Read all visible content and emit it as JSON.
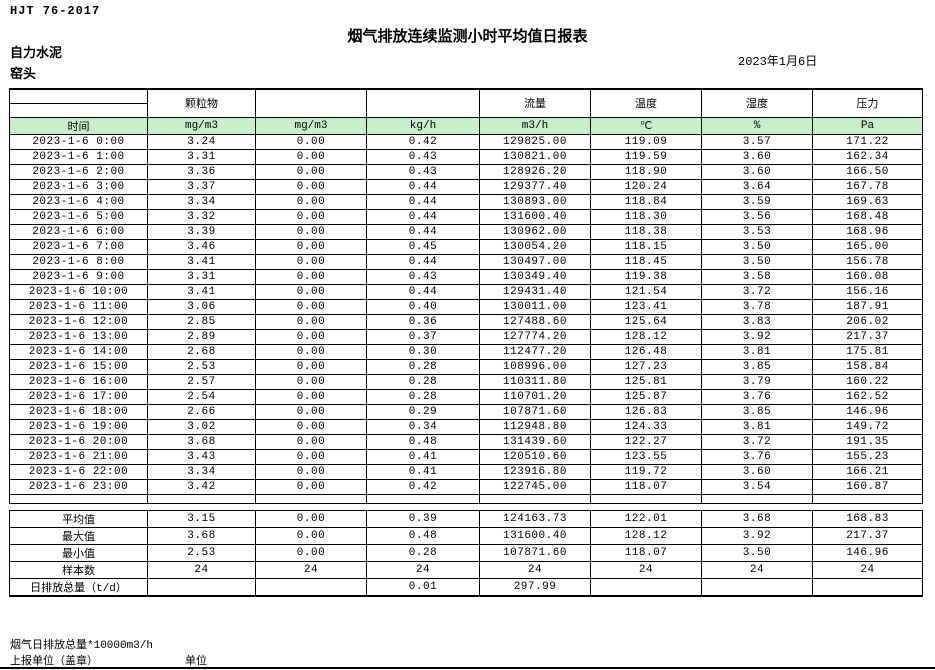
{
  "header": {
    "standard_code": "HJT 76-2017",
    "title": "烟气排放连续监测小时平均值日报表",
    "company": "自力水泥",
    "station": "窑头",
    "date": "2023年1月6日"
  },
  "colors": {
    "header_green": "#c8f0c8"
  },
  "table": {
    "group_headers": [
      "",
      "颗粒物",
      "",
      "",
      "流量",
      "温度",
      "湿度",
      "压力"
    ],
    "unit_row": [
      "时间",
      "mg/m3",
      "mg/m3",
      "kg/h",
      "m3/h",
      "℃",
      "%",
      "Pa"
    ],
    "rows": [
      [
        "2023-1-6 0:00",
        "3.24",
        "0.00",
        "0.42",
        "129825.00",
        "119.09",
        "3.57",
        "171.22"
      ],
      [
        "2023-1-6 1:00",
        "3.31",
        "0.00",
        "0.43",
        "130821.00",
        "119.59",
        "3.60",
        "162.34"
      ],
      [
        "2023-1-6 2:00",
        "3.36",
        "0.00",
        "0.43",
        "128926.20",
        "118.90",
        "3.60",
        "166.50"
      ],
      [
        "2023-1-6 3:00",
        "3.37",
        "0.00",
        "0.44",
        "129377.40",
        "120.24",
        "3.64",
        "167.78"
      ],
      [
        "2023-1-6 4:00",
        "3.34",
        "0.00",
        "0.44",
        "130893.00",
        "118.84",
        "3.59",
        "169.63"
      ],
      [
        "2023-1-6 5:00",
        "3.32",
        "0.00",
        "0.44",
        "131600.40",
        "118.30",
        "3.56",
        "168.48"
      ],
      [
        "2023-1-6 6:00",
        "3.39",
        "0.00",
        "0.44",
        "130962.00",
        "118.38",
        "3.53",
        "168.96"
      ],
      [
        "2023-1-6 7:00",
        "3.46",
        "0.00",
        "0.45",
        "130054.20",
        "118.15",
        "3.50",
        "165.00"
      ],
      [
        "2023-1-6 8:00",
        "3.41",
        "0.00",
        "0.44",
        "130497.00",
        "118.45",
        "3.50",
        "156.78"
      ],
      [
        "2023-1-6 9:00",
        "3.31",
        "0.00",
        "0.43",
        "130349.40",
        "119.38",
        "3.58",
        "160.08"
      ],
      [
        "2023-1-6 10:00",
        "3.41",
        "0.00",
        "0.44",
        "129431.40",
        "121.54",
        "3.72",
        "156.16"
      ],
      [
        "2023-1-6 11:00",
        "3.06",
        "0.00",
        "0.40",
        "130011.00",
        "123.41",
        "3.78",
        "187.91"
      ],
      [
        "2023-1-6 12:00",
        "2.85",
        "0.00",
        "0.36",
        "127488.60",
        "125.64",
        "3.83",
        "206.02"
      ],
      [
        "2023-1-6 13:00",
        "2.89",
        "0.00",
        "0.37",
        "127774.20",
        "128.12",
        "3.92",
        "217.37"
      ],
      [
        "2023-1-6 14:00",
        "2.68",
        "0.00",
        "0.30",
        "112477.20",
        "126.48",
        "3.81",
        "175.81"
      ],
      [
        "2023-1-6 15:00",
        "2.53",
        "0.00",
        "0.28",
        "108996.00",
        "127.23",
        "3.85",
        "158.84"
      ],
      [
        "2023-1-6 16:00",
        "2.57",
        "0.00",
        "0.28",
        "110311.80",
        "125.81",
        "3.79",
        "160.22"
      ],
      [
        "2023-1-6 17:00",
        "2.54",
        "0.00",
        "0.28",
        "110701.20",
        "125.87",
        "3.76",
        "162.52"
      ],
      [
        "2023-1-6 18:00",
        "2.66",
        "0.00",
        "0.29",
        "107871.60",
        "126.83",
        "3.85",
        "146.96"
      ],
      [
        "2023-1-6 19:00",
        "3.02",
        "0.00",
        "0.34",
        "112948.80",
        "124.33",
        "3.81",
        "149.72"
      ],
      [
        "2023-1-6 20:00",
        "3.68",
        "0.00",
        "0.48",
        "131439.60",
        "122.27",
        "3.72",
        "191.35"
      ],
      [
        "2023-1-6 21:00",
        "3.43",
        "0.00",
        "0.41",
        "120510.60",
        "123.55",
        "3.76",
        "155.23"
      ],
      [
        "2023-1-6 22:00",
        "3.34",
        "0.00",
        "0.41",
        "123916.80",
        "119.72",
        "3.60",
        "166.21"
      ],
      [
        "2023-1-6 23:00",
        "3.42",
        "0.00",
        "0.42",
        "122745.00",
        "118.07",
        "3.54",
        "160.87"
      ]
    ],
    "summary": [
      {
        "label": "平均值",
        "values": [
          "3.15",
          "0.00",
          "0.39",
          "124163.73",
          "122.01",
          "3.68",
          "168.83"
        ]
      },
      {
        "label": "最大值",
        "values": [
          "3.68",
          "0.00",
          "0.48",
          "131600.40",
          "128.12",
          "3.92",
          "217.37"
        ]
      },
      {
        "label": "最小值",
        "values": [
          "2.53",
          "0.00",
          "0.28",
          "107871.60",
          "118.07",
          "3.50",
          "146.96"
        ]
      },
      {
        "label": "样本数",
        "values": [
          "24",
          "24",
          "24",
          "24",
          "24",
          "24",
          "24"
        ]
      },
      {
        "label": "日排放总量（t/d）",
        "values": [
          "",
          "",
          "0.01",
          "297.99",
          "",
          "",
          ""
        ]
      }
    ]
  },
  "footer": {
    "note": "烟气日排放总量*10000m3/h",
    "report_unit_label": "上报单位（盖章）",
    "unit_label": "单位"
  }
}
